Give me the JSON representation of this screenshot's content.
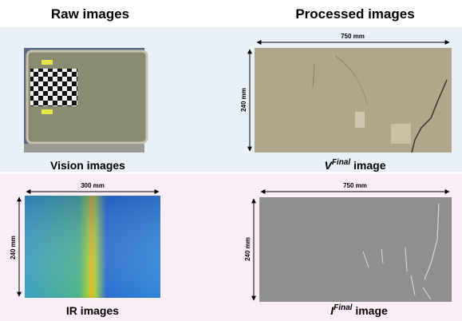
{
  "columns": {
    "left": "Raw images",
    "right": "Processed images"
  },
  "panels": [
    {
      "caption": "Vision images"
    },
    {
      "dimension_width": "750 mm",
      "dimension_height": "240 mm",
      "caption_symbol": "V",
      "caption_superscript": "Final",
      "caption_rest": " image"
    },
    {
      "dimension_width": "300 mm",
      "dimension_height": "240 mm",
      "caption": "IR images"
    },
    {
      "dimension_width": "750 mm",
      "dimension_height": "240 mm",
      "caption_symbol": "I",
      "caption_superscript": "Final",
      "caption_rest": " image"
    }
  ]
}
